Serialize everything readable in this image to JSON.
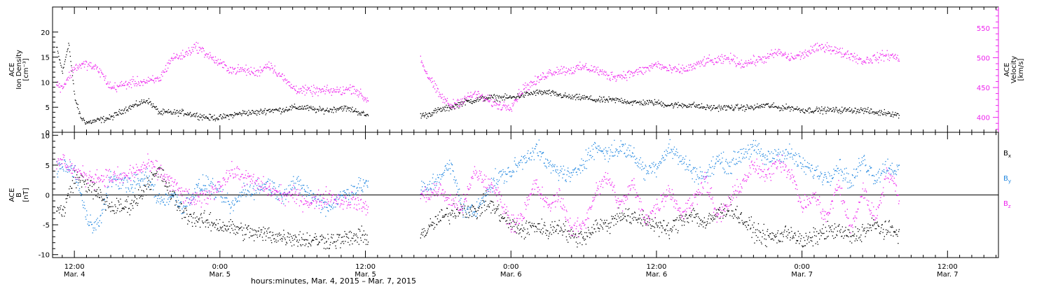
{
  "colors": {
    "axes": "#000000",
    "density": "#000000",
    "velocity": "#ee22ee",
    "bx": "#000000",
    "by": "#1f86e0",
    "bz": "#ee22ee"
  },
  "xaxis": {
    "title": "hours:minutes, Mar. 4, 2015 – Mar. 7, 2015",
    "ticks": [
      {
        "t": 12,
        "time": "12:00",
        "date": "Mar. 4"
      },
      {
        "t": 24,
        "time": "0:00",
        "date": "Mar. 5"
      },
      {
        "t": 36,
        "time": "12:00",
        "date": "Mar. 5"
      },
      {
        "t": 48,
        "time": "0:00",
        "date": "Mar. 6"
      },
      {
        "t": 60,
        "time": "12:00",
        "date": "Mar. 6"
      },
      {
        "t": 72,
        "time": "0:00",
        "date": "Mar. 7"
      },
      {
        "t": 84,
        "time": "12:00",
        "date": "Mar. 7"
      }
    ]
  },
  "chart_data": [
    {
      "type": "scatter",
      "x_range_hours": [
        10.2,
        88.2
      ],
      "data_gap_hours": [
        36.2,
        40.5
      ],
      "left_axis": {
        "label_lines": [
          "ACE",
          "Ion Density",
          "[cm⁻³]"
        ],
        "ylim": [
          0,
          25
        ],
        "ticks": [
          0,
          5,
          10,
          15,
          20
        ]
      },
      "right_axis": {
        "label_lines": [
          "ACE",
          "Velocity",
          "[km/s]"
        ],
        "ylim": [
          375,
          585
        ],
        "ticks": [
          400,
          450,
          500,
          550
        ]
      },
      "series": [
        {
          "axis": "left",
          "color": "#000000",
          "x": [
            10.5,
            11.0,
            11.5,
            12.0,
            12.5,
            13,
            14,
            15,
            16,
            17,
            18,
            19,
            20,
            21,
            22,
            23,
            24,
            25,
            26,
            27,
            28,
            29,
            30,
            31,
            32,
            33,
            34,
            35,
            36,
            40.5,
            41,
            42,
            43,
            44,
            45,
            46,
            47,
            48,
            49,
            50,
            51,
            52,
            53,
            54,
            55,
            56,
            57,
            58,
            59,
            60,
            61,
            62,
            63,
            64,
            65,
            66,
            67,
            68,
            69,
            70,
            71,
            72,
            73,
            74,
            75,
            76,
            77,
            78,
            79,
            80
          ],
          "y": [
            17,
            12,
            18,
            7,
            3,
            2,
            2.5,
            3,
            4.5,
            5.5,
            6.5,
            4,
            4,
            4,
            3.5,
            3,
            3,
            3.5,
            4,
            4,
            4.5,
            4.5,
            5,
            5,
            4.5,
            4.5,
            5,
            4.5,
            3.5,
            3.5,
            3.5,
            4.5,
            5,
            6,
            6.5,
            7,
            7,
            7,
            7.5,
            8,
            8,
            7.5,
            7,
            7,
            6.5,
            6.5,
            6.5,
            6,
            6,
            6,
            5.5,
            5.5,
            5.5,
            5,
            5,
            5,
            5,
            5,
            5.5,
            5,
            5,
            4.5,
            4.5,
            4.5,
            4.5,
            4.5,
            4.5,
            4,
            4,
            3.5
          ]
        },
        {
          "axis": "right",
          "color": "#ee22ee",
          "x": [
            10.5,
            11,
            12,
            13,
            14,
            15,
            16,
            17,
            18,
            19,
            20,
            21,
            22,
            23,
            24,
            25,
            26,
            27,
            28,
            29,
            30,
            31,
            32,
            33,
            34,
            35,
            36,
            40.5,
            41,
            42,
            43,
            44,
            45,
            46,
            47,
            48,
            49,
            50,
            51,
            52,
            53,
            54,
            55,
            56,
            57,
            58,
            59,
            60,
            61,
            62,
            63,
            64,
            65,
            66,
            67,
            68,
            69,
            70,
            71,
            72,
            73,
            74,
            75,
            76,
            77,
            78,
            79,
            80
          ],
          "y": [
            455,
            452,
            485,
            490,
            480,
            450,
            455,
            460,
            460,
            465,
            500,
            505,
            520,
            505,
            490,
            480,
            480,
            475,
            490,
            470,
            450,
            445,
            445,
            445,
            445,
            450,
            430,
            500,
            475,
            440,
            420,
            430,
            440,
            430,
            420,
            420,
            450,
            460,
            475,
            480,
            480,
            485,
            480,
            470,
            470,
            475,
            480,
            490,
            480,
            480,
            485,
            495,
            495,
            500,
            490,
            495,
            500,
            510,
            500,
            505,
            515,
            520,
            510,
            505,
            495,
            500,
            505,
            500
          ]
        }
      ]
    },
    {
      "type": "scatter",
      "x_range_hours": [
        10.2,
        88.2
      ],
      "data_gap_hours": [
        36.2,
        40.5
      ],
      "left_axis": {
        "label_lines": [
          "ACE",
          "B",
          "[nT]"
        ],
        "ylim": [
          -10.5,
          10.5
        ],
        "ticks": [
          -10,
          -5,
          0,
          5,
          10
        ]
      },
      "zero_line": true,
      "legend_placement": "right",
      "series": [
        {
          "name": "B",
          "sub": "x",
          "color": "#000000",
          "x": [
            10.5,
            11,
            12,
            13,
            14,
            15,
            16,
            17,
            18,
            19,
            20,
            21,
            22,
            23,
            24,
            25,
            26,
            27,
            28,
            29,
            30,
            31,
            32,
            33,
            34,
            35,
            36,
            40.5,
            41,
            42,
            43,
            44,
            45,
            46,
            47,
            48,
            49,
            50,
            51,
            52,
            53,
            54,
            55,
            56,
            57,
            58,
            59,
            60,
            61,
            62,
            63,
            64,
            65,
            66,
            67,
            68,
            69,
            70,
            71,
            72,
            73,
            74,
            75,
            76,
            77,
            78,
            79,
            80
          ],
          "y": [
            -2,
            -3,
            3,
            2,
            0,
            -2,
            -2,
            -1,
            2,
            4,
            0,
            -3,
            -4,
            -4.5,
            -5,
            -5.5,
            -6,
            -6.5,
            -6.5,
            -7,
            -7,
            -7.5,
            -7.5,
            -7.5,
            -7.5,
            -7,
            -7,
            -6.5,
            -6,
            -4,
            -3,
            -2,
            -3,
            -1,
            -3,
            -5,
            -6,
            -5,
            -6,
            -5,
            -7,
            -7,
            -5,
            -5,
            -3,
            -4,
            -4,
            -5,
            -6,
            -4,
            -3,
            -5,
            -3,
            -2,
            -4,
            -6,
            -7,
            -7,
            -6,
            -8,
            -7,
            -6,
            -6,
            -7,
            -6,
            -5,
            -6,
            -6
          ]
        },
        {
          "name": "B",
          "sub": "y",
          "color": "#1f86e0",
          "x": [
            10.5,
            11,
            12,
            13,
            14,
            15,
            16,
            17,
            18,
            19,
            20,
            21,
            22,
            23,
            24,
            25,
            26,
            27,
            28,
            29,
            30,
            31,
            32,
            33,
            34,
            35,
            36,
            40.5,
            41,
            42,
            43,
            44,
            45,
            46,
            47,
            48,
            49,
            50,
            51,
            52,
            53,
            54,
            55,
            56,
            57,
            58,
            59,
            60,
            61,
            62,
            63,
            64,
            65,
            66,
            67,
            68,
            69,
            70,
            71,
            72,
            73,
            74,
            75,
            76,
            77,
            78,
            79,
            80
          ],
          "y": [
            4,
            5,
            4,
            -4,
            -5,
            3,
            2,
            2,
            3,
            -1,
            0,
            -2,
            1,
            2,
            0,
            -2,
            1,
            1,
            2,
            0,
            2,
            1,
            -1,
            -2,
            0,
            1,
            2,
            1,
            1,
            3,
            5,
            -2,
            -3,
            1,
            3,
            4,
            6,
            8,
            5,
            4,
            3,
            6,
            8,
            7,
            8,
            7,
            4,
            5,
            8,
            6,
            4,
            3,
            6,
            5,
            7,
            8,
            6,
            7,
            7,
            5,
            4,
            3,
            5,
            2,
            6,
            3,
            5,
            4
          ]
        },
        {
          "name": "B",
          "sub": "z",
          "color": "#ee22ee",
          "x": [
            10.5,
            11,
            12,
            13,
            14,
            15,
            16,
            17,
            18,
            19,
            20,
            21,
            22,
            23,
            24,
            25,
            26,
            27,
            28,
            29,
            30,
            31,
            32,
            33,
            34,
            35,
            36,
            40.5,
            41,
            42,
            43,
            44,
            45,
            46,
            47,
            48,
            49,
            50,
            51,
            52,
            53,
            54,
            55,
            56,
            57,
            58,
            59,
            60,
            61,
            62,
            63,
            64,
            65,
            66,
            67,
            68,
            69,
            70,
            71,
            72,
            73,
            74,
            75,
            76,
            77,
            78,
            79,
            80
          ],
          "y": [
            5,
            6,
            4,
            3,
            3,
            3,
            3,
            4,
            5,
            4,
            2,
            0,
            -1,
            0,
            2,
            4,
            3,
            2,
            1,
            0,
            0,
            -1,
            -1,
            0,
            -1,
            -1,
            -2,
            0,
            0,
            1,
            -1,
            -2,
            4,
            2,
            0,
            -5,
            -3,
            2,
            -2,
            0,
            -6,
            -5,
            1,
            3,
            -2,
            2,
            -4,
            -2,
            1,
            -3,
            -1,
            3,
            -4,
            -1,
            2,
            5,
            3,
            6,
            4,
            -2,
            0,
            -4,
            2,
            -6,
            1,
            -4,
            4,
            0
          ]
        }
      ]
    }
  ]
}
